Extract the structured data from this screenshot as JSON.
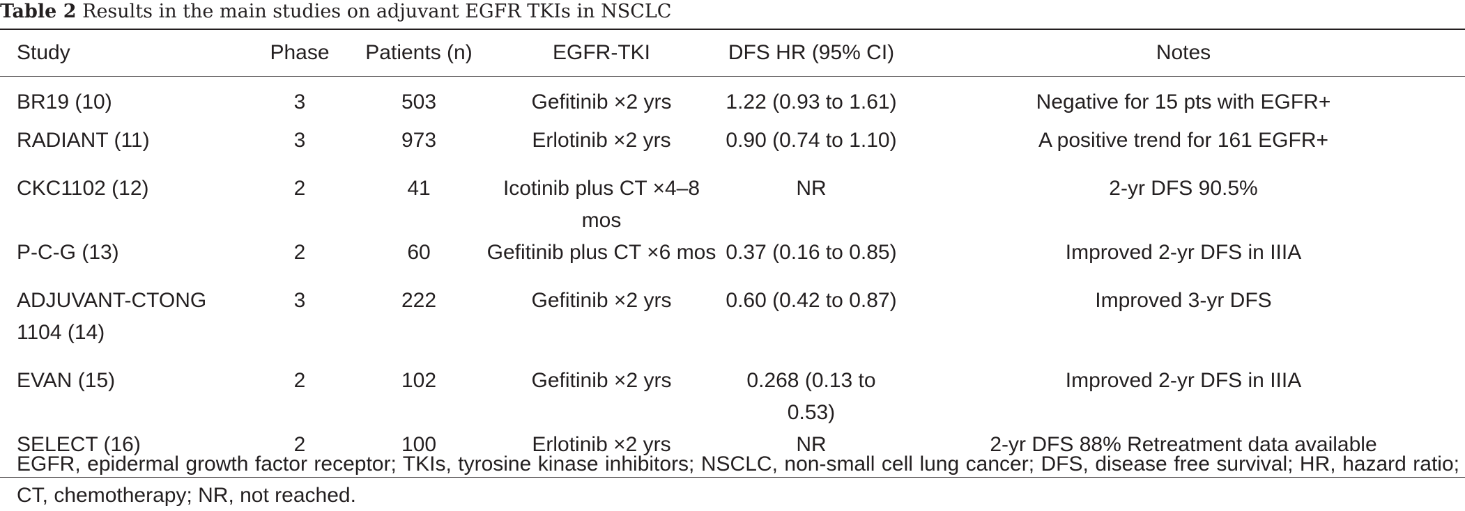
{
  "caption": {
    "label": "Table 2",
    "title": "Results in the main studies on adjuvant EGFR TKIs in NSCLC"
  },
  "table": {
    "headers": {
      "study": "Study",
      "phase": "Phase",
      "patients": "Patients (n)",
      "tki": "EGFR-TKI",
      "hr": "DFS HR (95% CI)",
      "notes": "Notes"
    },
    "rows": [
      {
        "study": "BR19 (10)",
        "phase": "3",
        "patients": "503",
        "tki": "Gefitinib ×2 yrs",
        "hr": "1.22 (0.93 to 1.61)",
        "notes": "Negative for 15 pts with EGFR+"
      },
      {
        "study": "RADIANT (11)",
        "phase": "3",
        "patients": "973",
        "tki": "Erlotinib ×2 yrs",
        "hr": "0.90 (0.74 to 1.10)",
        "notes": "A positive trend for 161 EGFR+"
      },
      {
        "study": "CKC1102 (12)",
        "phase": "2",
        "patients": "41",
        "tki": "Icotinib plus CT ×4–8 mos",
        "hr": "NR",
        "notes": "2-yr DFS 90.5%"
      },
      {
        "study": "P-C-G (13)",
        "phase": "2",
        "patients": "60",
        "tki": "Gefitinib plus CT ×6 mos",
        "hr": "0.37 (0.16 to 0.85)",
        "notes": "Improved 2-yr DFS in IIIA"
      },
      {
        "study_line1": "ADJUVANT-CTONG",
        "study_line2": "1104 (14)",
        "phase": "3",
        "patients": "222",
        "tki": "Gefitinib ×2 yrs",
        "hr": "0.60 (0.42 to 0.87)",
        "notes": "Improved 3-yr DFS"
      },
      {
        "study": "EVAN (15)",
        "phase": "2",
        "patients": "102",
        "tki": "Gefitinib ×2 yrs",
        "hr": "0.268 (0.13 to 0.53)",
        "notes": "Improved 2-yr DFS in IIIA"
      },
      {
        "study": "SELECT (16)",
        "phase": "2",
        "patients": "100",
        "tki": "Erlotinib ×2 yrs",
        "hr": "NR",
        "notes": "2-yr DFS 88% Retreatment data available"
      }
    ]
  },
  "footnote": "EGFR, epidermal growth factor receptor; TKIs, tyrosine kinase inhibitors; NSCLC, non-small cell lung cancer; DFS, disease free survival; HR, hazard ratio; CT, chemotherapy; NR, not reached."
}
